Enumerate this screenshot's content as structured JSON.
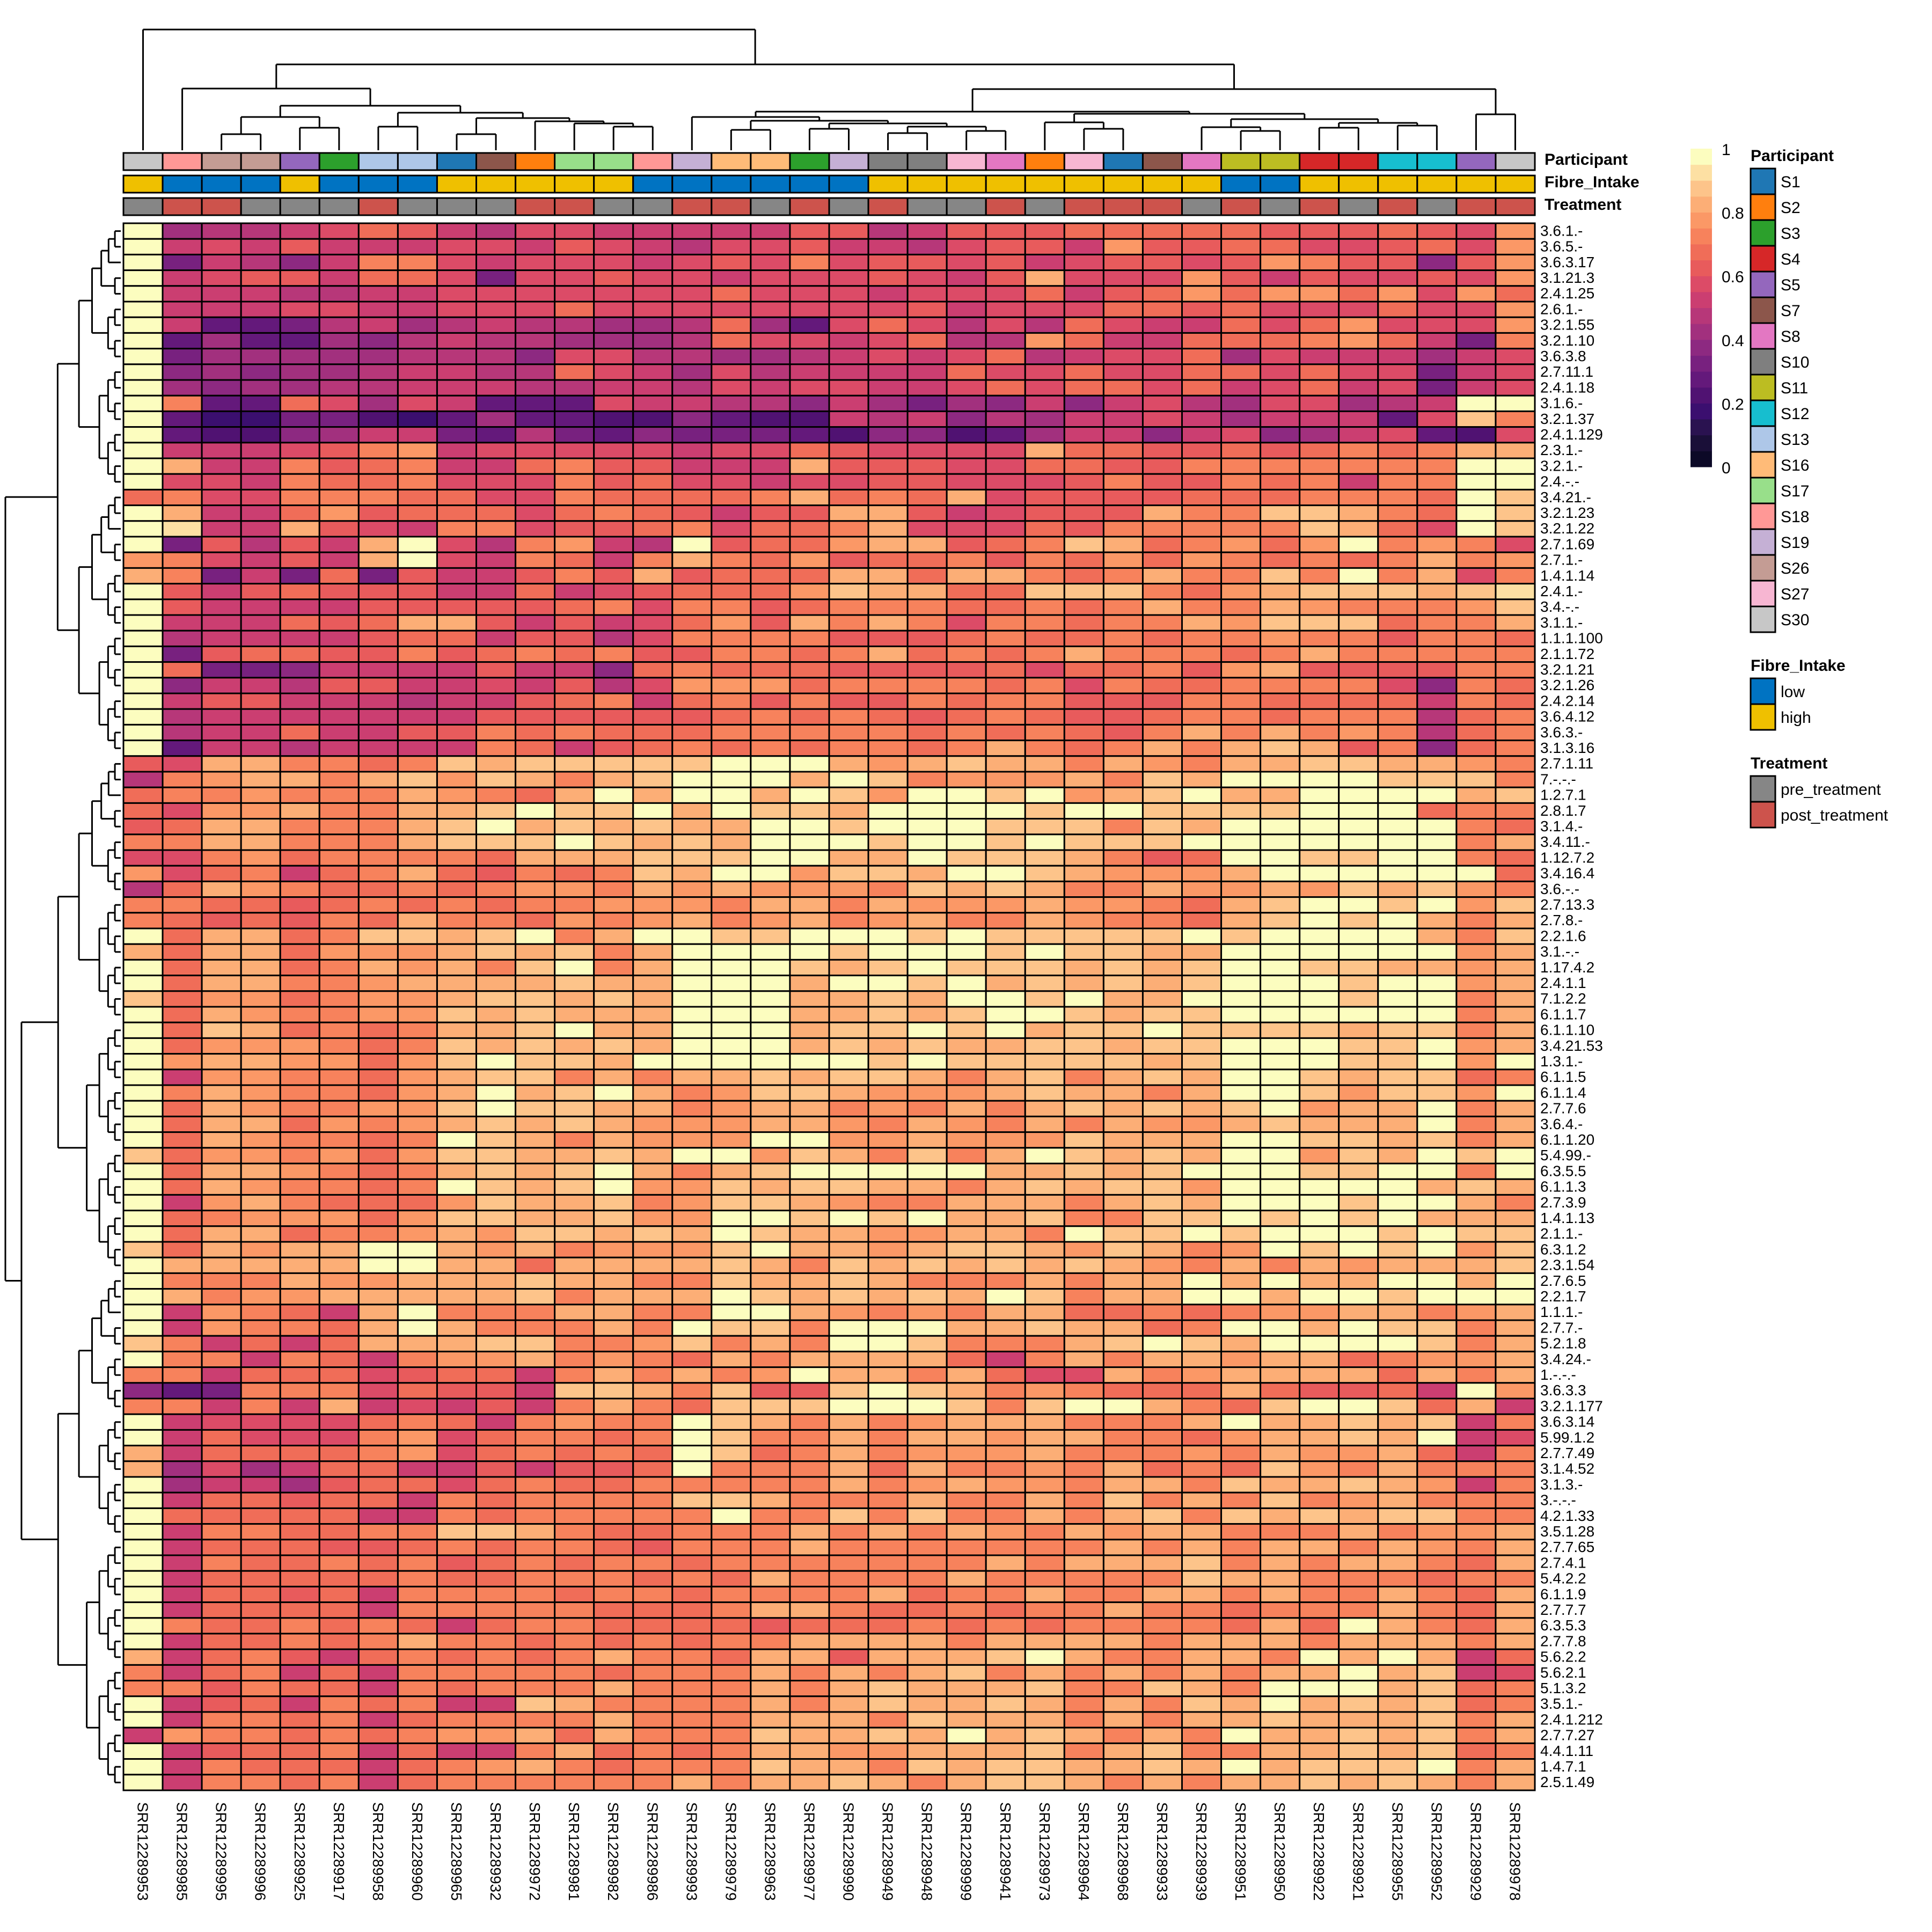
{
  "chart_data": {
    "type": "heatmap",
    "title": "",
    "color_scale": {
      "min": 0,
      "max": 1,
      "ticks": [
        "0",
        "0.2",
        "0.4",
        "0.6",
        "0.8",
        "1"
      ],
      "palette": [
        "#0c0927",
        "#1a0f38",
        "#2a1250",
        "#3b0f6f",
        "#501272",
        "#64197b",
        "#78217f",
        "#8d2981",
        "#a2307e",
        "#b73779",
        "#cb3e71",
        "#dc4b67",
        "#e85b5c",
        "#f06d58",
        "#f7825c",
        "#fb9866",
        "#fcae76",
        "#fdc48a",
        "#fde0a3",
        "#fcfdbf"
      ]
    },
    "level_key": {
      "a": 1.0,
      "b": 0.95,
      "c": 0.9,
      "d": 0.85,
      "e": 0.8,
      "f": 0.75,
      "g": 0.7,
      "h": 0.65,
      "i": 0.6,
      "j": 0.55,
      "k": 0.5,
      "l": 0.45,
      "m": 0.4,
      "n": 0.35,
      "o": 0.3,
      "p": 0.25,
      "q": 0.2
    },
    "columns": [
      "SRR12289953",
      "SRR12289985",
      "SRR12289995",
      "SRR12289996",
      "SRR12289925",
      "SRR12289917",
      "SRR12289958",
      "SRR12289960",
      "SRR12289965",
      "SRR12289932",
      "SRR12289972",
      "SRR12289981",
      "SRR12289982",
      "SRR12289986",
      "SRR12289993",
      "SRR12289979",
      "SRR12289963",
      "SRR12289977",
      "SRR12289990",
      "SRR12289949",
      "SRR12289948",
      "SRR12289999",
      "SRR12289941",
      "SRR12289973",
      "SRR12289964",
      "SRR12289968",
      "SRR12289933",
      "SRR12289939",
      "SRR12289951",
      "SRR12289950",
      "SRR12289922",
      "SRR12289921",
      "SRR12289955",
      "SRR12289952",
      "SRR12289929",
      "SRR12289978"
    ],
    "rows": [
      "3.6.1.-",
      "3.6.5.-",
      "3.6.3.17",
      "3.1.21.3",
      "2.4.1.25",
      "2.6.1.-",
      "3.2.1.55",
      "3.2.1.10",
      "3.6.3.8",
      "2.7.11.1",
      "2.4.1.18",
      "3.1.6.-",
      "3.2.1.37",
      "2.4.1.129",
      "2.3.1.-",
      "3.2.1.-",
      "2.4.-.-",
      "3.4.21.-",
      "3.2.1.23",
      "3.2.1.22",
      "2.7.1.69",
      "2.7.1.-",
      "1.4.1.14",
      "2.4.1.-",
      "3.4.-.-",
      "3.1.1.-",
      "1.1.1.100",
      "2.1.1.72",
      "3.2.1.21",
      "3.2.1.26",
      "2.4.2.14",
      "3.6.4.12",
      "3.6.3.-",
      "3.1.3.16",
      "2.7.1.11",
      "7.-.-.-",
      "1.2.7.1",
      "2.8.1.7",
      "3.1.4.-",
      "3.4.11.-",
      "1.12.7.2",
      "3.4.16.4",
      "3.6.-.-",
      "2.7.13.3",
      "2.7.8.-",
      "2.2.1.6",
      "3.1.-.-",
      "1.17.4.2",
      "2.4.1.1",
      "7.1.2.2",
      "6.1.1.7",
      "6.1.1.10",
      "3.4.21.53",
      "1.3.1.-",
      "6.1.1.5",
      "6.1.1.4",
      "2.7.7.6",
      "3.6.4.-",
      "6.1.1.20",
      "5.4.99.-",
      "6.3.5.5",
      "6.1.1.3",
      "2.7.3.9",
      "1.4.1.13",
      "2.1.1.-",
      "6.3.1.2",
      "2.3.1.54",
      "2.7.6.5",
      "2.2.1.7",
      "1.1.1.-",
      "2.7.7.-",
      "5.2.1.8",
      "3.4.24.-",
      "1.-.-.-",
      "3.6.3.3",
      "3.2.1.177",
      "3.6.3.14",
      "5.99.1.2",
      "2.7.7.49",
      "3.1.4.52",
      "3.1.3.-",
      "3.-.-.-",
      "4.2.1.33",
      "3.5.1.28",
      "2.7.7.65",
      "2.7.4.1",
      "5.4.2.2",
      "6.1.1.9",
      "2.7.7.7",
      "6.3.5.3",
      "2.7.7.8",
      "5.6.2.2",
      "5.6.2.1",
      "5.1.3.2",
      "3.5.1.-",
      "2.4.1.212",
      "2.7.7.27",
      "4.4.1.11",
      "1.4.7.1",
      "2.5.1.49"
    ],
    "values_encoded": [
      "alkkjighjkiijjjjjhhkjhhhggggghhhghie",
      "ajijhjjjiijhijkiihjjkihhjehhggiihgie",
      "anjkmjffijiiijihifihhihjihhihefhhmhe",
      "ajihhjgginiihiijiiihijhdiiiehjhiihie",
      "ajjjkkjjiiiiiiigiiijiiigjhgegeegeieg",
      "ajjjiijjiiigiiiiiiiihjiiigghgiiigiie",
      "ajoonkjlkjkkllkgloigikikgijjgigeiiie",
      "aoloolmkjkklllkgiijigkkegjjgggfegjnf",
      "anlllllkkkmiikkllkjijigkjiiglijjjlji",
      "amlmllkjjkkgijlikjjjjgiigiiggigiinji",
      "almllkkjjjkkjjkijiijjigiggigjigjinji",
      "afoogilijoooijjkkmjlnlmjmjikliilkjaa",
      "aoqqnnpqolooppmoppjkjmkljjijljjjoicf",
      "aoppmljjnoknomnnnopmmpoljjmjimljiopi",
      "ajjjihfejiiiiijiighiiiidgghhghgfgfdd",
      "adjjfhgfjjgfhhjjjdhhhiigghhfffffffaa",
      "aiijfggfiiifhgiijiihhiiihfhhfgfjffaa",
      "gfiifffggiifggggfdgfgdihhhhgggfffgac",
      "adjjgehgggigfghjhhddhjihhhdffccdfgac",
      "abjjdhijffihhgfiggfdiiighfffffcdgiac",
      "anhkhjdaikfejkahggeddhgfcdgfegeafefi",
      "efijhjdaijfgjfdfgehggfhfgegefgfgfdfe",
      "dfnjngnhjjhfhdhgggddgddfgfdffcfafdif",
      "ahjhghhhjjgjihgggecddggcccfgedcccdcb",
      "ahjjjjhhhhhgfiffhgfffggfgfdffdefffec",
      "ajjjghgddhjhjigehdfdfiffgffdecccgffd",
      "akjjjjhggjhhkiffffhhhgfggfgffeffhffg",
      "anhgghhfhgfgfhhffgfdgfgfdfffgfdfffff",
      "agnnmjjjjhjjmgfggghhhhgiggfhedhhhhff",
      "amjjkhhjjijhkieeegffffgfifggffffimfg",
      "ajhhjjjkjjhgfjgfhfhhfgffhhhffggggjfg",
      "akjjjjjjjhhhhhhgfgfghgfghhgffgfffkgf",
      "akjjgjjhhfgfgggfffffgfgfghfdfdfefkgf",
      "aojjkjjjjfgjhgfgfgffgfdfgfdfdcdhfmgf",
      "hiddffgfcdcccccaaadedcddfdefddccddef",
      "kfeddfdcecdfdcaaadacfeeedfcdaaaacccf",
      "gffefffdefgdadaadaceaacaedcaddaaaadc",
      "gieedffddcaccadaccdaaaacaaccccaaagff",
      "hgddfffdcadcdcddaacaaacccfcdaaaaaafg",
      "ffddfffdcccacdcdaaacaacacccaaaaaaafd",
      "iifegffffgdddcccaaddacccdfhgaaccaafg",
      "eigfjgfdghfgfcdaaeccdaacdeeedaaaaaag",
      "kgdefggfgfeefdedeeefcdcdffdeedecdcef",
      "ffgghgfgfgffeeefddfdeeedeefgdcaacaec",
      "fghghfgdffgefedfedfedffdeffgdcacadfd",
      "agddgfccdcafdaaccaaacacccccacaaaadfc",
      "dgddgeeedcdcfdaaaacaaacaccddaaaaaaed",
      "agddgfdedfcafdaaacdcacccdcdcaaccdded",
      "agddffeddddcddaaadaacadcdcdcaaacaaed",
      "cgeegfeedccdcdaaaddcdaacaddaaaacaafd",
      "agdeffeecdcdddaaaddcdcaacdccaaaaaafd",
      "agcdgfgfddcaddaaadccacadccaccccdccfd",
      "ageeefgfcdcdcdaaadcdcddccdccaaaccaed",
      "aeddeegecaccdaaaaaacacccccdcaaaccaea",
      "ajeeffgedccfdfddcdccdfdcfdcdaacdccgf",
      "afdeffgedadcadfeccdeeedcddfdaaceccea",
      "agdeffeecaccddfeddfefdfdcdcdcaeddafd",
      "agddgefedcdcdeeeddefdefdfdeedcdddafd",
      "agdeffgfacdfdeeeaaeedeeecdddaaccdcfd",
      "cgeefegeccddcdaaecdfcfdacdcdaaecdaca",
      "agddefgfdcdcadfdcaaaaaddcdcaaaccaafa",
      "agdeffgfacdcaeecdccddfdcdcceaaaaadcd",
      "ajedfgggecddcfeccdeffdddfdcdaaacaadf",
      "agfeeegeccddceeaacacaddcffccacacaddd",
      "agddgffedeccdcdacddeeddfaccacaaacacc",
      "cgdeddaadedfeeecaddedccdecdfeacacaec",
      "adddddaaddgddddcdfcdcdcdcdefdfdedddc",
      "afffdeedddcddffcddcdfffdfddadaddaada",
      "adfeedddddcfdddacdcdcdacfddaadaacaaa",
      "ajefgjdafffddffaadefefddggfgfeeddfed",
      "ajeffgdadfffdfaccfaaaddcddgfaadaccfd",
      "cfjgjgdddccffecfdfaacfffdcacdaaaacfd",
      "affjfgjfeedfefgdfddddgjfdfddeddgfeed",
      "ffjgggihggjfdfdfeaddfdgiidfeddddgdfd",
      "monfffighhjccdfchhcacdfefgggdghhgjaef",
      "ffjfjdjijhjfdfgcccaaacfcaadfgcaacgdjj",
      "ajiiiigfgjfeffacdfdfedddfffdaddcdcjf",
      "ajgiiifeigffgfacffdfddeddffgeddcdaji",
      "djggggfeigfgfgacgfdfeeedfffefdeedgjf",
      "dliljggjjhjhhgafffdgdffefdgfgcefdfff",
      "aljjlhggigfggfffffdfedeefddfcddcdejf",
      "ajgghggjfgffffccdfffdffdfcfdfcfedfff",
      "agggggjjfgfffffaffcfcffdfdcfcdcdccff",
      "ajffggffccdfggfffdfdfdefdeddfffdfeed",
      "ajggghhgfgffghfffdfffffffdfdfddfdefd",
      "ajfggfgfhgfgffgfffffffdfdddcfdfddfgd",
      "ajgggggfggfffgfgdffffdfffffcddfffgff",
      "ajgghgjffffgffgffffdgffdffddfdffdfgd",
      "ajggggjfffffgggfddfggfgffdffgfffdfgd",
      "afggfgfgjgffgggghgggfgfgffffgdgadfgd",
      "ajggfgfdffgfgfgffddddfddddfdddfdddfd",
      "djgfhjgfgfgfdffgddhdddcadffddfadadjg",
      "fjgfjgjfffffgfffdfdfdcfdfdfdfddadcji",
      "ffhfggjfgfffdfffdfdcdddcffcdfaaadcgf",
      "ajhgjfgfjjcdffffdfdcddcdfdfcdadcdcgf",
      "ajffgfjgffffdfffdddfcdddfdfddcdddcfd",
      "jeffgfgfeedgdfffcddcdadcdfdfaddcdcfd",
      "ajhggfjgjjfdgfgfddeedddcfdcffddcdcgf",
      "ajfgggjgfedfgfffcddfcdccddcdadcccafd",
      "ajffgfjgffffffdfddcdfdccdfdfddcdcdfd"
    ],
    "col_annotations": {
      "Participant": [
        "S30",
        "S18",
        "S26",
        "S26",
        "S5",
        "S3",
        "S13",
        "S13",
        "S1",
        "S7",
        "S2",
        "S17",
        "S17",
        "S18",
        "S19",
        "S16",
        "S16",
        "S3",
        "S19",
        "S10",
        "S10",
        "S27",
        "S8",
        "S2",
        "S27",
        "S1",
        "S7",
        "S8",
        "S11",
        "S11",
        "S4",
        "S4",
        "S12",
        "S12",
        "S5",
        "S30"
      ],
      "Fibre_Intake": [
        "high",
        "low",
        "low",
        "low",
        "high",
        "low",
        "low",
        "low",
        "high",
        "high",
        "high",
        "high",
        "high",
        "low",
        "low",
        "low",
        "low",
        "low",
        "low",
        "high",
        "high",
        "high",
        "high",
        "high",
        "high",
        "high",
        "high",
        "high",
        "low",
        "low",
        "high",
        "high",
        "high",
        "high",
        "high",
        "high"
      ],
      "Treatment": [
        "pre_treatment",
        "post_treatment",
        "post_treatment",
        "pre_treatment",
        "pre_treatment",
        "pre_treatment",
        "post_treatment",
        "pre_treatment",
        "pre_treatment",
        "pre_treatment",
        "post_treatment",
        "post_treatment",
        "pre_treatment",
        "pre_treatment",
        "post_treatment",
        "post_treatment",
        "pre_treatment",
        "post_treatment",
        "pre_treatment",
        "post_treatment",
        "pre_treatment",
        "pre_treatment",
        "post_treatment",
        "pre_treatment",
        "post_treatment",
        "post_treatment",
        "post_treatment",
        "pre_treatment",
        "post_treatment",
        "pre_treatment",
        "post_treatment",
        "pre_treatment",
        "post_treatment",
        "pre_treatment",
        "post_treatment",
        "post_treatment"
      ]
    },
    "annotation_labels": [
      "Participant",
      "Fibre_Intake",
      "Treatment"
    ],
    "legends": [
      {
        "title": "Participant",
        "entries": [
          {
            "label": "S1",
            "color": "#1f77b4"
          },
          {
            "label": "S2",
            "color": "#ff7f0e"
          },
          {
            "label": "S3",
            "color": "#2ca02c"
          },
          {
            "label": "S4",
            "color": "#d62728"
          },
          {
            "label": "S5",
            "color": "#9467bd"
          },
          {
            "label": "S7",
            "color": "#8c564b"
          },
          {
            "label": "S8",
            "color": "#e377c2"
          },
          {
            "label": "S10",
            "color": "#7f7f7f"
          },
          {
            "label": "S11",
            "color": "#bcbd22"
          },
          {
            "label": "S12",
            "color": "#17becf"
          },
          {
            "label": "S13",
            "color": "#aec7e8"
          },
          {
            "label": "S16",
            "color": "#ffbb78"
          },
          {
            "label": "S17",
            "color": "#98df8a"
          },
          {
            "label": "S18",
            "color": "#ff9896"
          },
          {
            "label": "S19",
            "color": "#c5b0d5"
          },
          {
            "label": "S26",
            "color": "#c49c94"
          },
          {
            "label": "S27",
            "color": "#f7b6d2"
          },
          {
            "label": "S30",
            "color": "#c7c7c7"
          }
        ]
      },
      {
        "title": "Fibre_Intake",
        "entries": [
          {
            "label": "low",
            "color": "#0073c2"
          },
          {
            "label": "high",
            "color": "#efc000"
          }
        ]
      },
      {
        "title": "Treatment",
        "entries": [
          {
            "label": "pre_treatment",
            "color": "#868686"
          },
          {
            "label": "post_treatment",
            "color": "#cd534c"
          }
        ]
      }
    ],
    "col_dendrogram_order_note": "hierarchical clustering of columns",
    "row_dendrogram": true
  }
}
